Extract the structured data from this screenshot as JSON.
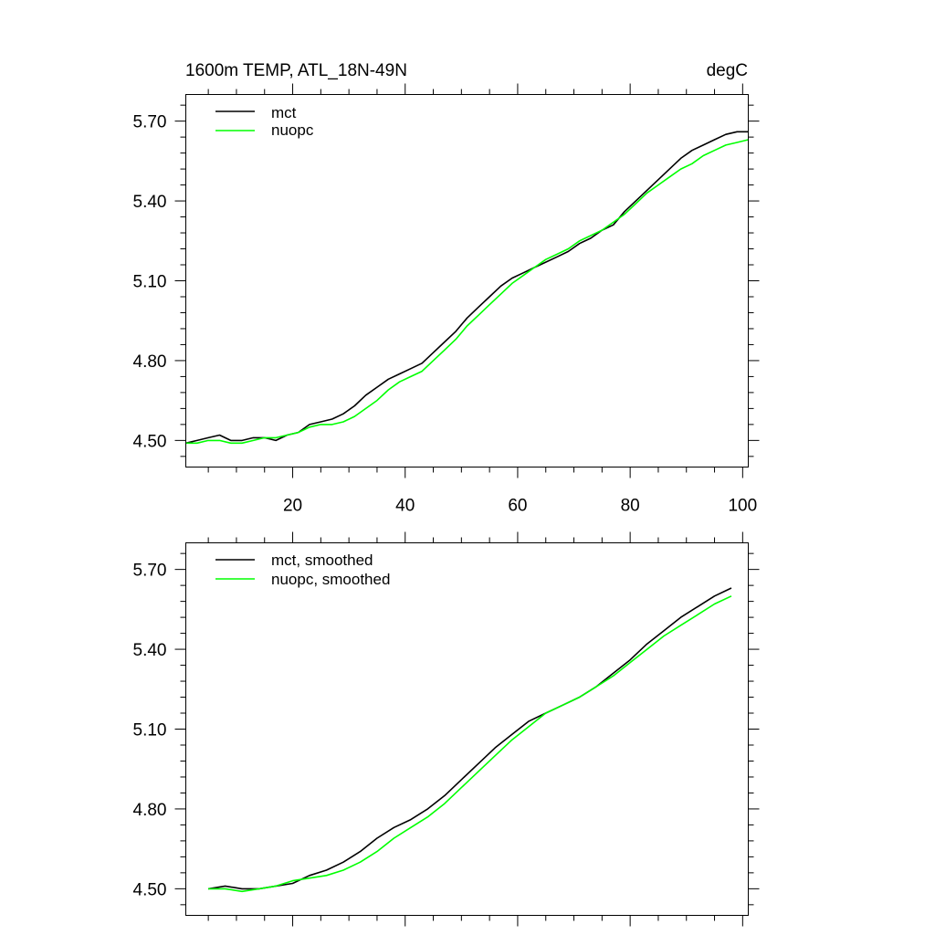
{
  "chart_data": [
    {
      "type": "line",
      "title_left": "1600m TEMP, ATL_18N-49N",
      "title_right": "degC",
      "xlim": [
        1,
        101
      ],
      "ylim": [
        4.4,
        5.8
      ],
      "x_ticks": [
        20,
        40,
        60,
        80,
        100
      ],
      "x_tick_labels": [
        "20",
        "40",
        "60",
        "80",
        "100"
      ],
      "y_ticks": [
        4.5,
        4.8,
        5.1,
        5.4,
        5.7
      ],
      "y_tick_labels": [
        "4.50",
        "4.80",
        "5.10",
        "5.40",
        "5.70"
      ],
      "legend_position": "top-left",
      "series": [
        {
          "name": "mct",
          "color": "#000000",
          "x": [
            1,
            3,
            5,
            7,
            9,
            11,
            13,
            15,
            17,
            19,
            21,
            23,
            25,
            27,
            29,
            31,
            33,
            35,
            37,
            39,
            41,
            43,
            45,
            47,
            49,
            51,
            53,
            55,
            57,
            59,
            61,
            63,
            65,
            67,
            69,
            71,
            73,
            75,
            77,
            79,
            81,
            83,
            85,
            87,
            89,
            91,
            93,
            95,
            97,
            99,
            101
          ],
          "values": [
            4.49,
            4.5,
            4.51,
            4.52,
            4.5,
            4.5,
            4.51,
            4.51,
            4.5,
            4.52,
            4.53,
            4.56,
            4.57,
            4.58,
            4.6,
            4.63,
            4.67,
            4.7,
            4.73,
            4.75,
            4.77,
            4.79,
            4.83,
            4.87,
            4.91,
            4.96,
            5.0,
            5.04,
            5.08,
            5.11,
            5.13,
            5.15,
            5.17,
            5.19,
            5.21,
            5.24,
            5.26,
            5.29,
            5.31,
            5.36,
            5.4,
            5.44,
            5.48,
            5.52,
            5.56,
            5.59,
            5.61,
            5.63,
            5.65,
            5.66,
            5.66
          ]
        },
        {
          "name": "nuopc",
          "color": "#00ff00",
          "x": [
            1,
            3,
            5,
            7,
            9,
            11,
            13,
            15,
            17,
            19,
            21,
            23,
            25,
            27,
            29,
            31,
            33,
            35,
            37,
            39,
            41,
            43,
            45,
            47,
            49,
            51,
            53,
            55,
            57,
            59,
            61,
            63,
            65,
            67,
            69,
            71,
            73,
            75,
            77,
            79,
            81,
            83,
            85,
            87,
            89,
            91,
            93,
            95,
            97,
            99,
            101
          ],
          "values": [
            4.49,
            4.49,
            4.5,
            4.5,
            4.49,
            4.49,
            4.5,
            4.51,
            4.51,
            4.52,
            4.53,
            4.55,
            4.56,
            4.56,
            4.57,
            4.59,
            4.62,
            4.65,
            4.69,
            4.72,
            4.74,
            4.76,
            4.8,
            4.84,
            4.88,
            4.93,
            4.97,
            5.01,
            5.05,
            5.09,
            5.12,
            5.15,
            5.18,
            5.2,
            5.22,
            5.25,
            5.27,
            5.29,
            5.32,
            5.35,
            5.39,
            5.43,
            5.46,
            5.49,
            5.52,
            5.54,
            5.57,
            5.59,
            5.61,
            5.62,
            5.63
          ]
        }
      ]
    },
    {
      "type": "line",
      "xlim": [
        1,
        101
      ],
      "ylim": [
        4.4,
        5.8
      ],
      "x_ticks": [
        20,
        40,
        60,
        80,
        100
      ],
      "y_ticks": [
        4.5,
        4.8,
        5.1,
        5.4,
        5.7
      ],
      "y_tick_labels": [
        "4.50",
        "4.80",
        "5.10",
        "5.40",
        "5.70"
      ],
      "legend_position": "top-left",
      "series": [
        {
          "name": "mct, smoothed",
          "color": "#000000",
          "x": [
            5,
            8,
            11,
            14,
            17,
            20,
            23,
            26,
            29,
            32,
            35,
            38,
            41,
            44,
            47,
            50,
            53,
            56,
            59,
            62,
            65,
            68,
            71,
            74,
            77,
            80,
            83,
            86,
            89,
            92,
            95,
            98
          ],
          "values": [
            4.5,
            4.51,
            4.5,
            4.5,
            4.51,
            4.52,
            4.55,
            4.57,
            4.6,
            4.64,
            4.69,
            4.73,
            4.76,
            4.8,
            4.85,
            4.91,
            4.97,
            5.03,
            5.08,
            5.13,
            5.16,
            5.19,
            5.22,
            5.26,
            5.31,
            5.36,
            5.42,
            5.47,
            5.52,
            5.56,
            5.6,
            5.63
          ]
        },
        {
          "name": "nuopc, smoothed",
          "color": "#00ff00",
          "x": [
            5,
            8,
            11,
            14,
            17,
            20,
            23,
            26,
            29,
            32,
            35,
            38,
            41,
            44,
            47,
            50,
            53,
            56,
            59,
            62,
            65,
            68,
            71,
            74,
            77,
            80,
            83,
            86,
            89,
            92,
            95,
            98
          ],
          "values": [
            4.5,
            4.5,
            4.49,
            4.5,
            4.51,
            4.53,
            4.54,
            4.55,
            4.57,
            4.6,
            4.64,
            4.69,
            4.73,
            4.77,
            4.82,
            4.88,
            4.94,
            5.0,
            5.06,
            5.11,
            5.16,
            5.19,
            5.22,
            5.26,
            5.3,
            5.35,
            5.4,
            5.45,
            5.49,
            5.53,
            5.57,
            5.6
          ]
        }
      ]
    }
  ]
}
